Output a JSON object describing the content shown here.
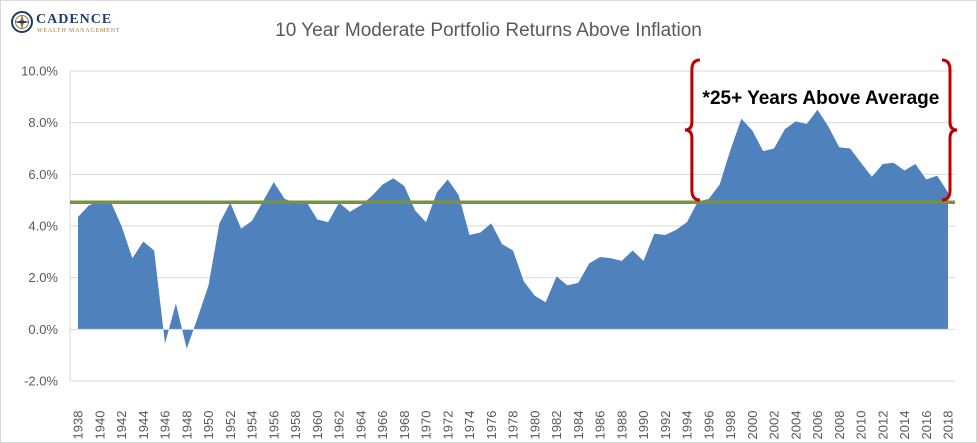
{
  "logo": {
    "name": "CADENCE",
    "subtitle": "WEALTH MANAGEMENT"
  },
  "chart_data": {
    "type": "area",
    "title": "10 Year Moderate Portfolio Returns Above Inflation",
    "xlabel": "",
    "ylabel": "",
    "ylim": [
      -2,
      10
    ],
    "yticks": [
      "-2.0%",
      "0.0%",
      "2.0%",
      "4.0%",
      "6.0%",
      "8.0%",
      "10.0%"
    ],
    "ytick_values": [
      -2,
      0,
      2,
      4,
      6,
      8,
      10
    ],
    "grid": true,
    "legend": "none",
    "x": [
      1938,
      1939,
      1940,
      1941,
      1942,
      1943,
      1944,
      1945,
      1946,
      1947,
      1948,
      1949,
      1950,
      1951,
      1952,
      1953,
      1954,
      1955,
      1956,
      1957,
      1958,
      1959,
      1960,
      1961,
      1962,
      1963,
      1964,
      1965,
      1966,
      1967,
      1968,
      1969,
      1970,
      1971,
      1972,
      1973,
      1974,
      1975,
      1976,
      1977,
      1978,
      1979,
      1980,
      1981,
      1982,
      1983,
      1984,
      1985,
      1986,
      1987,
      1988,
      1989,
      1990,
      1991,
      1992,
      1993,
      1994,
      1995,
      1996,
      1997,
      1998,
      1999,
      2000,
      2001,
      2002,
      2003,
      2004,
      2005,
      2006,
      2007,
      2008,
      2009,
      2010,
      2011,
      2012,
      2013,
      2014,
      2015,
      2016,
      2017,
      2018
    ],
    "x_tick_labels": [
      "1938",
      "1940",
      "1942",
      "1944",
      "1946",
      "1948",
      "1950",
      "1952",
      "1954",
      "1956",
      "1958",
      "1960",
      "1962",
      "1964",
      "1966",
      "1968",
      "1970",
      "1972",
      "1974",
      "1976",
      "1978",
      "1980",
      "1982",
      "1984",
      "1986",
      "1988",
      "1990",
      "1992",
      "1994",
      "1996",
      "1998",
      "2000",
      "2002",
      "2004",
      "2006",
      "2008",
      "2010",
      "2012",
      "2014",
      "2016",
      "2018"
    ],
    "series": [
      {
        "name": "",
        "color": "#4f81bd",
        "values": [
          4.35,
          4.8,
          4.95,
          4.95,
          4.0,
          2.75,
          3.4,
          3.05,
          -0.55,
          1.0,
          -0.75,
          0.45,
          1.7,
          4.1,
          4.9,
          3.9,
          4.2,
          4.95,
          5.7,
          5.05,
          4.9,
          4.95,
          4.25,
          4.15,
          4.9,
          4.55,
          4.8,
          5.15,
          5.6,
          5.85,
          5.55,
          4.6,
          4.15,
          5.3,
          5.8,
          5.2,
          3.65,
          3.75,
          4.1,
          3.3,
          3.05,
          1.85,
          1.3,
          1.05,
          2.05,
          1.7,
          1.8,
          2.55,
          2.8,
          2.75,
          2.65,
          3.05,
          2.65,
          3.7,
          3.65,
          3.85,
          4.15,
          4.95,
          5.05,
          5.6,
          6.95,
          8.15,
          7.7,
          6.9,
          7.0,
          7.75,
          8.05,
          7.95,
          8.5,
          7.85,
          7.05,
          7.0,
          6.45,
          5.9,
          6.4,
          6.45,
          6.15,
          6.4,
          5.8,
          5.95,
          5.3
        ]
      }
    ],
    "reference_line": {
      "value": 4.92,
      "color": "#77933c"
    },
    "annotation": {
      "text": "*25+ Years Above Average",
      "bracket_color": "#c00000",
      "bracket_from_year": 1995,
      "bracket_to_year": 2018
    }
  }
}
